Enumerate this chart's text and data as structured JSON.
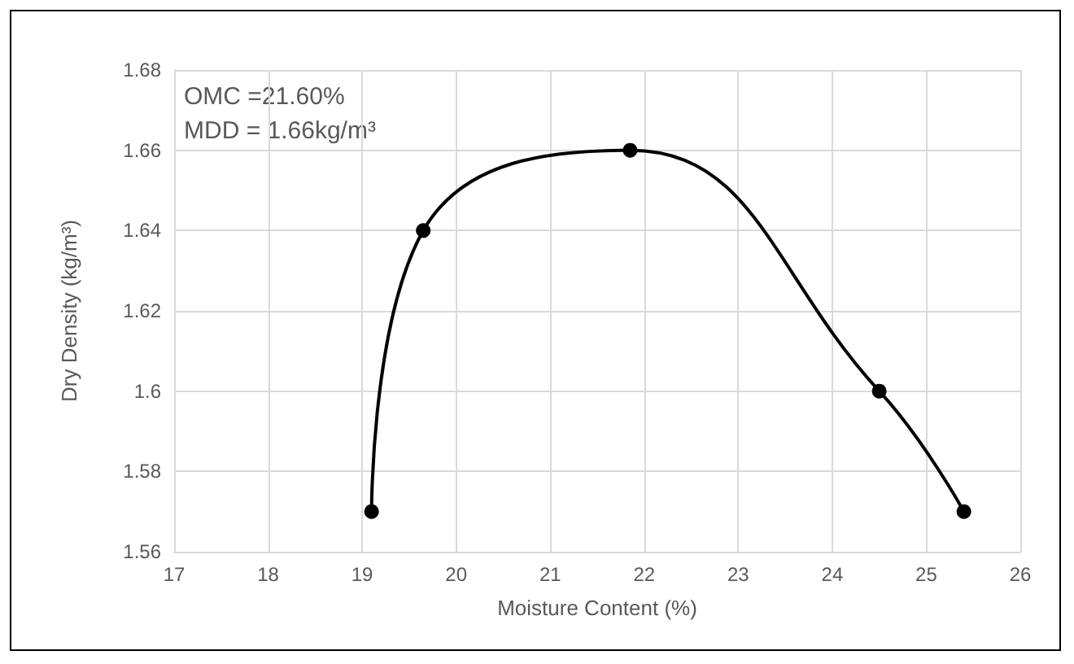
{
  "chart_data": {
    "type": "line",
    "xlabel": "Moisture Content (%)",
    "ylabel": "Dry Density (kg/m³)",
    "annotations": [
      "OMC =21.60%",
      "MDD = 1.66kg/m³"
    ],
    "x": [
      19.1,
      19.65,
      21.85,
      24.5,
      25.4
    ],
    "series": [
      {
        "color": "#000000",
        "values": [
          1.57,
          1.64,
          1.66,
          1.6,
          1.57
        ]
      }
    ],
    "xlim": [
      17,
      26
    ],
    "xticks": [
      17,
      18,
      19,
      20,
      21,
      22,
      23,
      24,
      25,
      26
    ],
    "ylim": [
      1.56,
      1.68
    ],
    "yticks": [
      1.56,
      1.58,
      1.6,
      1.62,
      1.64,
      1.66,
      1.68
    ],
    "grid": true,
    "marker": "circle",
    "line_style": "solid"
  }
}
